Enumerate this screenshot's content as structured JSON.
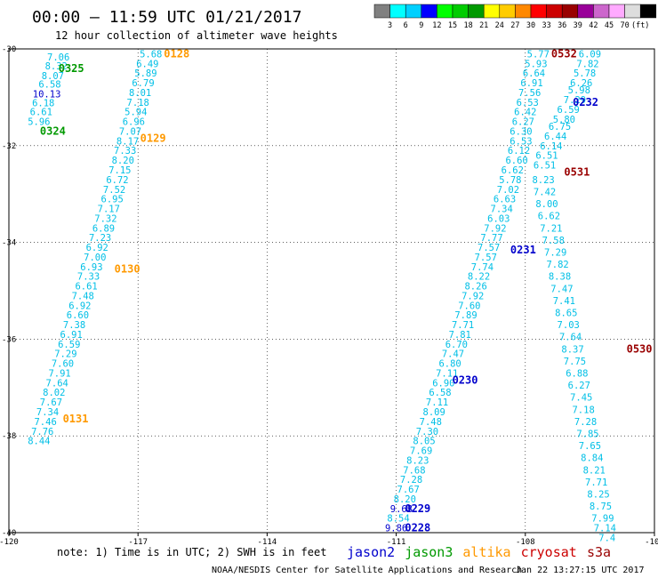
{
  "header": {
    "title": "00:00 – 11:59 UTC 01/21/2017",
    "subtitle": "12 hour collection of altimeter wave heights"
  },
  "colorbar": {
    "colors": [
      "#808080",
      "#00ffff",
      "#00d0ff",
      "#0000ff",
      "#00ff00",
      "#00cc00",
      "#009900",
      "#ffff00",
      "#ffcc00",
      "#ff8800",
      "#ff0000",
      "#cc0000",
      "#990000",
      "#990099",
      "#cc66cc",
      "#ffaaff",
      "#dddddd",
      "#000000"
    ],
    "labels": [
      "3",
      "6",
      "9",
      "12",
      "15",
      "18",
      "21",
      "24",
      "27",
      "30",
      "33",
      "36",
      "39",
      "42",
      "45",
      "70",
      "(ft)"
    ]
  },
  "note": "note: 1) Time is in UTC; 2) SWH is in feet",
  "legend": [
    {
      "name": "jason2",
      "color": "#0000cc"
    },
    {
      "name": "jason3",
      "color": "#009900"
    },
    {
      "name": "altika",
      "color": "#ff9900"
    },
    {
      "name": "cryosat",
      "color": "#cc0000"
    },
    {
      "name": "s3a",
      "color": "#990000"
    }
  ],
  "footer": {
    "credit": "NOAA/NESDIS Center for Satellite Applications and Research",
    "timestamp": "Jan 22 13:27:15 UTC 2017"
  },
  "chart_data": {
    "type": "scatter",
    "xlim": [
      -120,
      -105
    ],
    "ylim": [
      -40,
      -30
    ],
    "x_ticks": [
      -120,
      -117,
      -114,
      -111,
      -108,
      -105
    ],
    "x_tick_labels": [
      "-120",
      "-117",
      "-114",
      "-111",
      "-108",
      "-105"
    ],
    "y_ticks": [
      -30,
      -32,
      -34,
      -36,
      -38,
      -40
    ],
    "y_tick_labels": [
      "-30",
      "-32",
      "-34",
      "-36",
      "-38",
      "-40"
    ],
    "grid": true,
    "swh_color": "#00bfe6",
    "tracks": [
      {
        "values": [
          {
            "x": -118.85,
            "y": -30.17,
            "label": "7.06"
          },
          {
            "x": -118.9,
            "y": -30.35,
            "label": "8.32"
          },
          {
            "x": -118.98,
            "y": -30.55,
            "label": "8.07"
          },
          {
            "x": -119.05,
            "y": -30.73,
            "label": "6.58"
          },
          {
            "x": -119.12,
            "y": -30.93,
            "label": "10.13",
            "color": "#0000cc"
          },
          {
            "x": -119.2,
            "y": -31.11,
            "label": "6.18"
          },
          {
            "x": -119.25,
            "y": -31.3,
            "label": "6.61"
          },
          {
            "x": -119.3,
            "y": -31.5,
            "label": "5.96"
          }
        ]
      },
      {
        "values": [
          {
            "x": -116.7,
            "y": -30.1,
            "label": "5.68"
          },
          {
            "x": -116.78,
            "y": -30.3,
            "label": "6.49"
          },
          {
            "x": -116.82,
            "y": -30.5,
            "label": "5.89"
          },
          {
            "x": -116.88,
            "y": -30.7,
            "label": "6.79"
          },
          {
            "x": -116.95,
            "y": -30.9,
            "label": "8.01"
          },
          {
            "x": -117.0,
            "y": -31.1,
            "label": "7.18"
          },
          {
            "x": -117.05,
            "y": -31.3,
            "label": "5.94"
          },
          {
            "x": -117.1,
            "y": -31.5,
            "label": "6.96"
          },
          {
            "x": -117.18,
            "y": -31.7,
            "label": "7.07"
          },
          {
            "x": -117.24,
            "y": -31.9,
            "label": "8.17"
          },
          {
            "x": -117.3,
            "y": -32.1,
            "label": "7.33"
          },
          {
            "x": -117.35,
            "y": -32.3,
            "label": "8.20"
          },
          {
            "x": -117.42,
            "y": -32.5,
            "label": "7.15"
          },
          {
            "x": -117.48,
            "y": -32.7,
            "label": "6.72"
          },
          {
            "x": -117.55,
            "y": -32.9,
            "label": "7.52"
          },
          {
            "x": -117.6,
            "y": -33.1,
            "label": "6.95"
          },
          {
            "x": -117.68,
            "y": -33.3,
            "label": "7.17"
          },
          {
            "x": -117.75,
            "y": -33.5,
            "label": "7.32"
          },
          {
            "x": -117.8,
            "y": -33.7,
            "label": "6.89"
          },
          {
            "x": -117.88,
            "y": -33.9,
            "label": "7.23"
          },
          {
            "x": -117.95,
            "y": -34.1,
            "label": "6.92"
          },
          {
            "x": -118.0,
            "y": -34.3,
            "label": "7.00"
          },
          {
            "x": -118.08,
            "y": -34.5,
            "label": "6.93"
          },
          {
            "x": -118.15,
            "y": -34.7,
            "label": "7.33"
          },
          {
            "x": -118.2,
            "y": -34.9,
            "label": "6.61"
          },
          {
            "x": -118.28,
            "y": -35.1,
            "label": "7.48"
          },
          {
            "x": -118.35,
            "y": -35.3,
            "label": "6.92"
          },
          {
            "x": -118.4,
            "y": -35.5,
            "label": "6.60"
          },
          {
            "x": -118.48,
            "y": -35.7,
            "label": "7.38"
          },
          {
            "x": -118.55,
            "y": -35.9,
            "label": "6.91"
          },
          {
            "x": -118.6,
            "y": -36.1,
            "label": "6.59"
          },
          {
            "x": -118.68,
            "y": -36.3,
            "label": "7.29"
          },
          {
            "x": -118.75,
            "y": -36.5,
            "label": "7.60"
          },
          {
            "x": -118.82,
            "y": -36.7,
            "label": "7.91"
          },
          {
            "x": -118.88,
            "y": -36.9,
            "label": "7.64"
          },
          {
            "x": -118.95,
            "y": -37.1,
            "label": "8.02"
          },
          {
            "x": -119.02,
            "y": -37.3,
            "label": "7.67"
          },
          {
            "x": -119.1,
            "y": -37.5,
            "label": "7.34"
          },
          {
            "x": -119.15,
            "y": -37.7,
            "label": "7.46"
          },
          {
            "x": -119.22,
            "y": -37.9,
            "label": "7.76"
          },
          {
            "x": -119.3,
            "y": -38.1,
            "label": "8.44"
          }
        ]
      },
      {
        "values": [
          {
            "x": -107.7,
            "y": -30.1,
            "label": "5.77"
          },
          {
            "x": -107.75,
            "y": -30.3,
            "label": "5.93"
          },
          {
            "x": -107.8,
            "y": -30.5,
            "label": "6.64"
          },
          {
            "x": -107.85,
            "y": -30.7,
            "label": "6.91"
          },
          {
            "x": -107.9,
            "y": -30.9,
            "label": "7.56"
          },
          {
            "x": -107.95,
            "y": -31.1,
            "label": "6.53"
          },
          {
            "x": -108.0,
            "y": -31.3,
            "label": "6.42"
          },
          {
            "x": -108.05,
            "y": -31.5,
            "label": "6.27"
          },
          {
            "x": -108.1,
            "y": -31.7,
            "label": "6.30"
          },
          {
            "x": -108.1,
            "y": -31.9,
            "label": "6.53"
          },
          {
            "x": -108.15,
            "y": -32.1,
            "label": "6.12"
          },
          {
            "x": -108.2,
            "y": -32.3,
            "label": "6.60"
          },
          {
            "x": -108.3,
            "y": -32.5,
            "label": "6.62"
          },
          {
            "x": -108.35,
            "y": -32.7,
            "label": "5.78"
          },
          {
            "x": -108.4,
            "y": -32.9,
            "label": "7.02"
          },
          {
            "x": -108.48,
            "y": -33.1,
            "label": "6.63"
          },
          {
            "x": -108.55,
            "y": -33.3,
            "label": "7.34"
          },
          {
            "x": -108.62,
            "y": -33.5,
            "label": "6.03"
          },
          {
            "x": -108.7,
            "y": -33.7,
            "label": "7.92"
          },
          {
            "x": -108.78,
            "y": -33.9,
            "label": "7.77"
          },
          {
            "x": -108.85,
            "y": -34.1,
            "label": "7.57"
          },
          {
            "x": -108.92,
            "y": -34.3,
            "label": "7.57"
          },
          {
            "x": -109.0,
            "y": -34.5,
            "label": "7.74"
          },
          {
            "x": -109.08,
            "y": -34.7,
            "label": "8.22"
          },
          {
            "x": -109.15,
            "y": -34.9,
            "label": "8.26"
          },
          {
            "x": -109.22,
            "y": -35.1,
            "label": "7.92"
          },
          {
            "x": -109.3,
            "y": -35.3,
            "label": "7.60"
          },
          {
            "x": -109.38,
            "y": -35.5,
            "label": "7.89"
          },
          {
            "x": -109.45,
            "y": -35.7,
            "label": "7.71"
          },
          {
            "x": -109.52,
            "y": -35.9,
            "label": "7.81"
          },
          {
            "x": -109.6,
            "y": -36.1,
            "label": "6.70"
          },
          {
            "x": -109.68,
            "y": -36.3,
            "label": "7.47"
          },
          {
            "x": -109.75,
            "y": -36.5,
            "label": "6.80"
          },
          {
            "x": -109.82,
            "y": -36.7,
            "label": "7.11"
          },
          {
            "x": -109.9,
            "y": -36.9,
            "label": "6.90"
          },
          {
            "x": -109.98,
            "y": -37.1,
            "label": "6.58"
          },
          {
            "x": -110.05,
            "y": -37.3,
            "label": "7.11"
          },
          {
            "x": -110.12,
            "y": -37.5,
            "label": "8.09"
          },
          {
            "x": -110.2,
            "y": -37.7,
            "label": "7.48"
          },
          {
            "x": -110.28,
            "y": -37.9,
            "label": "7.30"
          },
          {
            "x": -110.35,
            "y": -38.1,
            "label": "8.05"
          },
          {
            "x": -110.42,
            "y": -38.3,
            "label": "7.69"
          },
          {
            "x": -110.5,
            "y": -38.5,
            "label": "8.23"
          },
          {
            "x": -110.58,
            "y": -38.7,
            "label": "7.68"
          },
          {
            "x": -110.65,
            "y": -38.9,
            "label": "7.28"
          },
          {
            "x": -110.72,
            "y": -39.1,
            "label": "7.67"
          },
          {
            "x": -110.8,
            "y": -39.3,
            "label": "8.20"
          },
          {
            "x": -110.88,
            "y": -39.5,
            "label": "9.68",
            "color": "#0000cc"
          },
          {
            "x": -110.95,
            "y": -39.7,
            "label": "8.54"
          },
          {
            "x": -111.0,
            "y": -39.9,
            "label": "9.86",
            "color": "#0000cc"
          }
        ]
      },
      {
        "values": [
          {
            "x": -106.5,
            "y": -30.1,
            "label": "6.09"
          },
          {
            "x": -106.55,
            "y": -30.3,
            "label": "7.82"
          },
          {
            "x": -106.62,
            "y": -30.5,
            "label": "5.78"
          },
          {
            "x": -106.7,
            "y": -30.7,
            "label": "6.26"
          },
          {
            "x": -106.75,
            "y": -30.85,
            "label": "5.98"
          },
          {
            "x": -106.85,
            "y": -31.05,
            "label": "7.29"
          },
          {
            "x": -107.0,
            "y": -31.25,
            "label": "6.59"
          },
          {
            "x": -107.1,
            "y": -31.45,
            "label": "5.80"
          },
          {
            "x": -107.2,
            "y": -31.6,
            "label": "6.75"
          },
          {
            "x": -107.3,
            "y": -31.8,
            "label": "6.44"
          },
          {
            "x": -107.4,
            "y": -32.0,
            "label": "6.14"
          },
          {
            "x": -107.5,
            "y": -32.2,
            "label": "6.51"
          },
          {
            "x": -107.55,
            "y": -32.4,
            "label": "6.51"
          },
          {
            "x": -107.58,
            "y": -32.7,
            "label": "8.23"
          },
          {
            "x": -107.55,
            "y": -32.95,
            "label": "7.42"
          },
          {
            "x": -107.5,
            "y": -33.2,
            "label": "8.00"
          },
          {
            "x": -107.45,
            "y": -33.45,
            "label": "6.62"
          },
          {
            "x": -107.4,
            "y": -33.7,
            "label": "7.21"
          },
          {
            "x": -107.35,
            "y": -33.95,
            "label": "7.58"
          },
          {
            "x": -107.3,
            "y": -34.2,
            "label": "7.29"
          },
          {
            "x": -107.25,
            "y": -34.45,
            "label": "7.82"
          },
          {
            "x": -107.2,
            "y": -34.7,
            "label": "8.38"
          },
          {
            "x": -107.15,
            "y": -34.95,
            "label": "7.47"
          },
          {
            "x": -107.1,
            "y": -35.2,
            "label": "7.41"
          },
          {
            "x": -107.05,
            "y": -35.45,
            "label": "8.65"
          },
          {
            "x": -107.0,
            "y": -35.7,
            "label": "7.03"
          },
          {
            "x": -106.95,
            "y": -35.95,
            "label": "7.64"
          },
          {
            "x": -106.9,
            "y": -36.2,
            "label": "8.37"
          },
          {
            "x": -106.85,
            "y": -36.45,
            "label": "7.75"
          },
          {
            "x": -106.8,
            "y": -36.7,
            "label": "6.88"
          },
          {
            "x": -106.75,
            "y": -36.95,
            "label": "6.27"
          },
          {
            "x": -106.7,
            "y": -37.2,
            "label": "7.45"
          },
          {
            "x": -106.65,
            "y": -37.45,
            "label": "7.18"
          },
          {
            "x": -106.6,
            "y": -37.7,
            "label": "7.28"
          },
          {
            "x": -106.55,
            "y": -37.95,
            "label": "7.85"
          },
          {
            "x": -106.5,
            "y": -38.2,
            "label": "7.65"
          },
          {
            "x": -106.45,
            "y": -38.45,
            "label": "8.84"
          },
          {
            "x": -106.4,
            "y": -38.7,
            "label": "8.21"
          },
          {
            "x": -106.35,
            "y": -38.95,
            "label": "7.71"
          },
          {
            "x": -106.3,
            "y": -39.2,
            "label": "8.25"
          },
          {
            "x": -106.25,
            "y": -39.45,
            "label": "8.75"
          },
          {
            "x": -106.2,
            "y": -39.7,
            "label": "7.99"
          },
          {
            "x": -106.15,
            "y": -39.9,
            "label": "7.14"
          },
          {
            "x": -106.1,
            "y": -40.1,
            "label": "7.4"
          }
        ]
      }
    ],
    "pass_labels": [
      {
        "text": "0325",
        "x": -118.55,
        "y": -30.4,
        "color": "#009900"
      },
      {
        "text": "0324",
        "x": -118.98,
        "y": -31.7,
        "color": "#009900"
      },
      {
        "text": "0128",
        "x": -116.1,
        "y": -30.1,
        "color": "#ff9900"
      },
      {
        "text": "0129",
        "x": -116.65,
        "y": -31.85,
        "color": "#ff9900"
      },
      {
        "text": "0130",
        "x": -117.25,
        "y": -34.55,
        "color": "#ff9900"
      },
      {
        "text": "0131",
        "x": -118.45,
        "y": -37.65,
        "color": "#ff9900"
      },
      {
        "text": "0532",
        "x": -107.1,
        "y": -30.1,
        "color": "#990000"
      },
      {
        "text": "0232",
        "x": -106.6,
        "y": -31.1,
        "color": "#0000cc"
      },
      {
        "text": "0531",
        "x": -106.8,
        "y": -32.55,
        "color": "#990000"
      },
      {
        "text": "0231",
        "x": -108.05,
        "y": -34.15,
        "color": "#0000cc"
      },
      {
        "text": "0530",
        "x": -105.35,
        "y": -36.2,
        "color": "#990000"
      },
      {
        "text": "0230",
        "x": -109.4,
        "y": -36.85,
        "color": "#0000cc"
      },
      {
        "text": "0229",
        "x": -110.5,
        "y": -39.5,
        "color": "#0000cc"
      },
      {
        "text": "0228",
        "x": -110.5,
        "y": -39.9,
        "color": "#0000cc"
      }
    ]
  }
}
